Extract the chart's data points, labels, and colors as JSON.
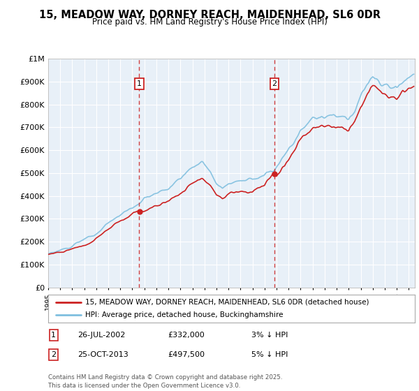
{
  "title": "15, MEADOW WAY, DORNEY REACH, MAIDENHEAD, SL6 0DR",
  "subtitle": "Price paid vs. HM Land Registry's House Price Index (HPI)",
  "background_color": "#ffffff",
  "plot_bg_color": "#e8f0f8",
  "ylim": [
    0,
    1000000
  ],
  "yticks": [
    0,
    100000,
    200000,
    300000,
    400000,
    500000,
    600000,
    700000,
    800000,
    900000,
    1000000
  ],
  "ytick_labels": [
    "£0",
    "£100K",
    "£200K",
    "£300K",
    "£400K",
    "£500K",
    "£600K",
    "£700K",
    "£800K",
    "£900K",
    "£1M"
  ],
  "xlim_start": 1995.0,
  "xlim_end": 2025.5,
  "xtick_years": [
    1995,
    1996,
    1997,
    1998,
    1999,
    2000,
    2001,
    2002,
    2003,
    2004,
    2005,
    2006,
    2007,
    2008,
    2009,
    2010,
    2011,
    2012,
    2013,
    2014,
    2015,
    2016,
    2017,
    2018,
    2019,
    2020,
    2021,
    2022,
    2023,
    2024,
    2025
  ],
  "sale1_x": 2002.57,
  "sale1_y": 332000,
  "sale1_label": "1",
  "sale2_x": 2013.82,
  "sale2_y": 497500,
  "sale2_label": "2",
  "legend_entry1": "15, MEADOW WAY, DORNEY REACH, MAIDENHEAD, SL6 0DR (detached house)",
  "legend_entry2": "HPI: Average price, detached house, Buckinghamshire",
  "annotation1_date": "26-JUL-2002",
  "annotation1_price": "£332,000",
  "annotation1_hpi": "3% ↓ HPI",
  "annotation2_date": "25-OCT-2013",
  "annotation2_price": "£497,500",
  "annotation2_hpi": "5% ↓ HPI",
  "footer": "Contains HM Land Registry data © Crown copyright and database right 2025.\nThis data is licensed under the Open Government Licence v3.0.",
  "hpi_color": "#7fbfdf",
  "price_color": "#cc2222",
  "vline_color": "#cc2222",
  "marker_box_color": "#cc2222",
  "grid_color": "#ffffff"
}
